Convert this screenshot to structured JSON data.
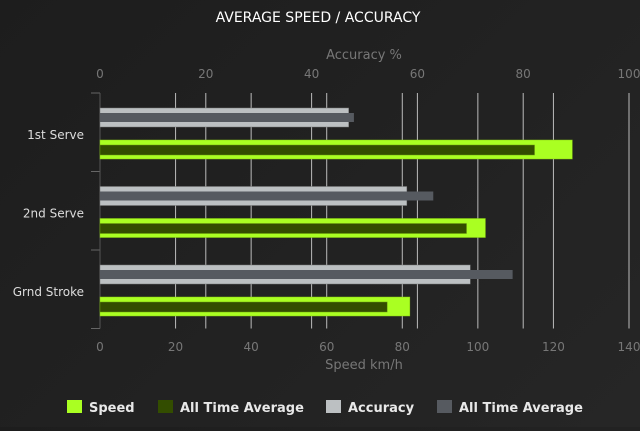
{
  "chart_data": {
    "type": "bar",
    "orientation": "horizontal",
    "title": "AVERAGE SPEED / ACCURACY",
    "categories": [
      "1st Serve",
      "2nd Serve",
      "Grnd Stroke"
    ],
    "x_bottom": {
      "label": "Speed km/h",
      "range": [
        0,
        140
      ],
      "ticks": [
        0,
        20,
        40,
        60,
        80,
        100,
        120,
        140
      ]
    },
    "x_top": {
      "label": "Accuracy %",
      "range": [
        0,
        100
      ],
      "ticks": [
        0,
        20,
        40,
        60,
        80,
        100
      ]
    },
    "grid": true,
    "legend_position": "bottom",
    "series": [
      {
        "name": "Speed",
        "axis": "bottom",
        "color": "#aaff22",
        "values": [
          125,
          102,
          82
        ]
      },
      {
        "name": "All Time Average",
        "axis": "bottom",
        "color": "#334d00",
        "values": [
          115,
          97,
          76
        ]
      },
      {
        "name": "Accuracy",
        "axis": "top",
        "color": "#bcc0c2",
        "values": [
          47,
          58,
          70
        ]
      },
      {
        "name": "All Time Average",
        "axis": "top",
        "color": "#565a60",
        "values": [
          48,
          63,
          78
        ]
      }
    ]
  }
}
